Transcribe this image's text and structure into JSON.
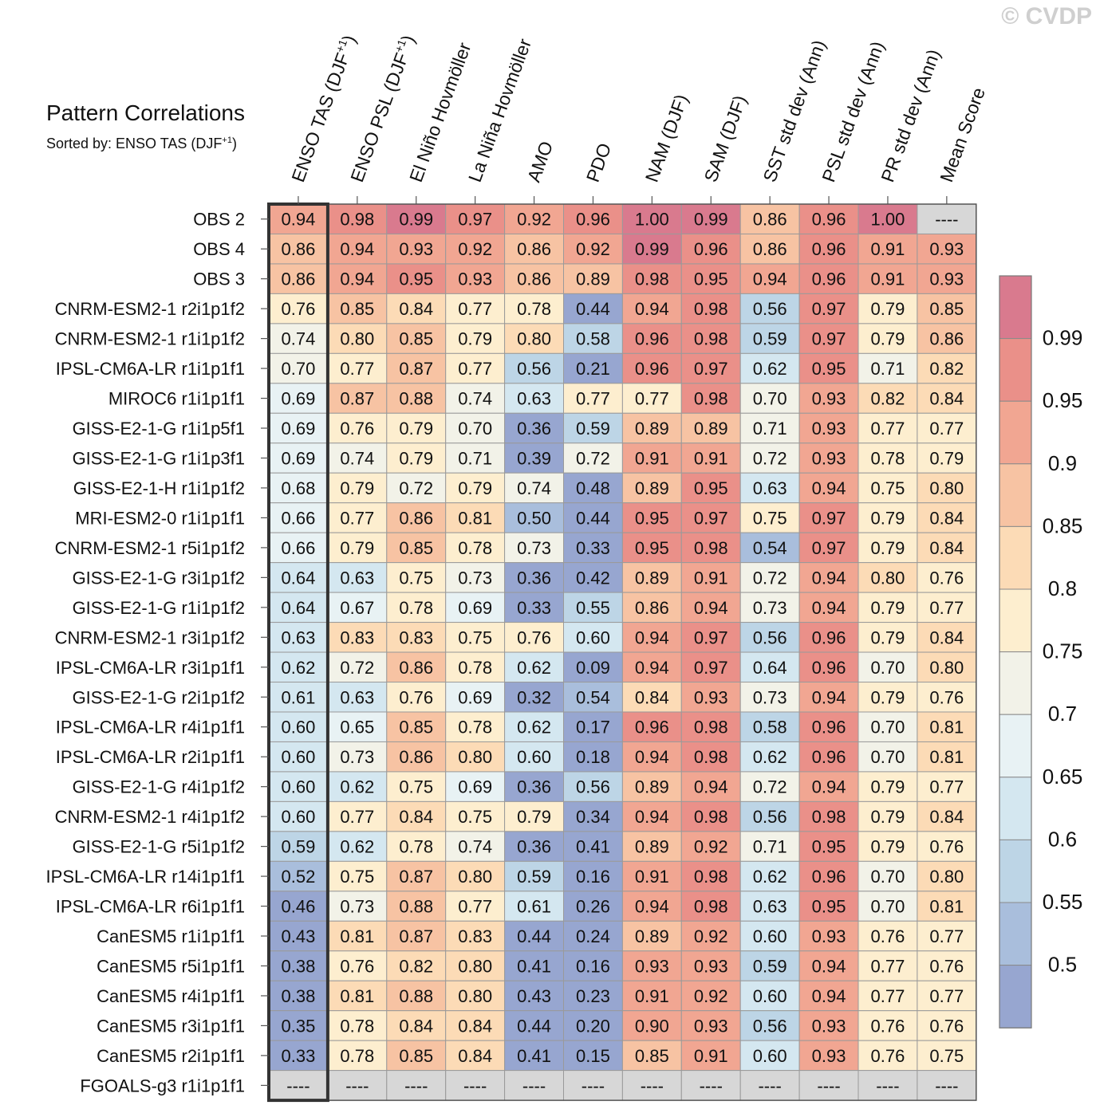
{
  "watermark": "© CVDP",
  "title": "Pattern Correlations",
  "subtitle": {
    "prefix": "Sorted by: ENSO TAS (DJF",
    "sup": "+1",
    "suffix": ")"
  },
  "chart_data": {
    "type": "heatmap",
    "title": "Pattern Correlations",
    "subtitle": "Sorted by: ENSO TAS (DJF+1)",
    "columns": [
      {
        "label": "ENSO TAS (DJF",
        "sup": "+1",
        "suffix": ")"
      },
      {
        "label": "ENSO PSL (DJF",
        "sup": "+1",
        "suffix": ")"
      },
      {
        "label": "El Niño Hovmöller"
      },
      {
        "label": "La Niña Hovmöller"
      },
      {
        "label": "AMO"
      },
      {
        "label": "PDO"
      },
      {
        "label": "NAM (DJF)"
      },
      {
        "label": "SAM (DJF)"
      },
      {
        "label": "SST std dev (Ann)"
      },
      {
        "label": "PSL std dev (Ann)"
      },
      {
        "label": "PR std dev (Ann)"
      },
      {
        "label": "Mean Score"
      }
    ],
    "sorted_column": 0,
    "rows": [
      {
        "name": "OBS 2",
        "values": [
          0.94,
          0.98,
          0.99,
          0.97,
          0.92,
          0.96,
          1.0,
          0.99,
          0.86,
          0.96,
          1.0,
          null
        ]
      },
      {
        "name": "OBS 4",
        "values": [
          0.86,
          0.94,
          0.93,
          0.92,
          0.86,
          0.92,
          0.99,
          0.96,
          0.86,
          0.96,
          0.91,
          0.93
        ]
      },
      {
        "name": "OBS 3",
        "values": [
          0.86,
          0.94,
          0.95,
          0.93,
          0.86,
          0.89,
          0.98,
          0.95,
          0.94,
          0.96,
          0.91,
          0.93
        ]
      },
      {
        "name": "CNRM-ESM2-1 r2i1p1f2",
        "values": [
          0.76,
          0.85,
          0.84,
          0.77,
          0.78,
          0.44,
          0.94,
          0.98,
          0.56,
          0.97,
          0.79,
          0.85
        ]
      },
      {
        "name": "CNRM-ESM2-1 r1i1p1f2",
        "values": [
          0.74,
          0.8,
          0.85,
          0.79,
          0.8,
          0.58,
          0.96,
          0.98,
          0.59,
          0.97,
          0.79,
          0.86
        ]
      },
      {
        "name": "IPSL-CM6A-LR r1i1p1f1",
        "values": [
          0.7,
          0.77,
          0.87,
          0.77,
          0.56,
          0.21,
          0.96,
          0.97,
          0.62,
          0.95,
          0.71,
          0.82
        ]
      },
      {
        "name": "MIROC6 r1i1p1f1",
        "values": [
          0.69,
          0.87,
          0.88,
          0.74,
          0.63,
          0.77,
          0.77,
          0.98,
          0.7,
          0.93,
          0.82,
          0.84
        ]
      },
      {
        "name": "GISS-E2-1-G r1i1p5f1",
        "values": [
          0.69,
          0.76,
          0.79,
          0.7,
          0.36,
          0.59,
          0.89,
          0.89,
          0.71,
          0.93,
          0.77,
          0.77
        ]
      },
      {
        "name": "GISS-E2-1-G r1i1p3f1",
        "values": [
          0.69,
          0.74,
          0.79,
          0.71,
          0.39,
          0.72,
          0.91,
          0.91,
          0.72,
          0.93,
          0.78,
          0.79
        ]
      },
      {
        "name": "GISS-E2-1-H r1i1p1f2",
        "values": [
          0.68,
          0.79,
          0.72,
          0.79,
          0.74,
          0.48,
          0.89,
          0.95,
          0.63,
          0.94,
          0.75,
          0.8
        ]
      },
      {
        "name": "MRI-ESM2-0 r1i1p1f1",
        "values": [
          0.66,
          0.77,
          0.86,
          0.81,
          0.5,
          0.44,
          0.95,
          0.97,
          0.75,
          0.97,
          0.79,
          0.84
        ]
      },
      {
        "name": "CNRM-ESM2-1 r5i1p1f2",
        "values": [
          0.66,
          0.79,
          0.85,
          0.78,
          0.73,
          0.33,
          0.95,
          0.98,
          0.54,
          0.97,
          0.79,
          0.84
        ]
      },
      {
        "name": "GISS-E2-1-G r3i1p1f2",
        "values": [
          0.64,
          0.63,
          0.75,
          0.73,
          0.36,
          0.42,
          0.89,
          0.91,
          0.72,
          0.94,
          0.8,
          0.76
        ]
      },
      {
        "name": "GISS-E2-1-G r1i1p1f2",
        "values": [
          0.64,
          0.67,
          0.78,
          0.69,
          0.33,
          0.55,
          0.86,
          0.94,
          0.73,
          0.94,
          0.79,
          0.77
        ]
      },
      {
        "name": "CNRM-ESM2-1 r3i1p1f2",
        "values": [
          0.63,
          0.83,
          0.83,
          0.75,
          0.76,
          0.6,
          0.94,
          0.97,
          0.56,
          0.96,
          0.79,
          0.84
        ]
      },
      {
        "name": "IPSL-CM6A-LR r3i1p1f1",
        "values": [
          0.62,
          0.72,
          0.86,
          0.78,
          0.62,
          0.09,
          0.94,
          0.97,
          0.64,
          0.96,
          0.7,
          0.8
        ]
      },
      {
        "name": "GISS-E2-1-G r2i1p1f2",
        "values": [
          0.61,
          0.63,
          0.76,
          0.69,
          0.32,
          0.54,
          0.84,
          0.93,
          0.73,
          0.94,
          0.79,
          0.76
        ]
      },
      {
        "name": "IPSL-CM6A-LR r4i1p1f1",
        "values": [
          0.6,
          0.65,
          0.85,
          0.78,
          0.62,
          0.17,
          0.96,
          0.98,
          0.58,
          0.96,
          0.7,
          0.81
        ]
      },
      {
        "name": "IPSL-CM6A-LR r2i1p1f1",
        "values": [
          0.6,
          0.73,
          0.86,
          0.8,
          0.6,
          0.18,
          0.94,
          0.98,
          0.62,
          0.96,
          0.7,
          0.81
        ]
      },
      {
        "name": "GISS-E2-1-G r4i1p1f2",
        "values": [
          0.6,
          0.62,
          0.75,
          0.69,
          0.36,
          0.56,
          0.89,
          0.94,
          0.72,
          0.94,
          0.79,
          0.77
        ]
      },
      {
        "name": "CNRM-ESM2-1 r4i1p1f2",
        "values": [
          0.6,
          0.77,
          0.84,
          0.75,
          0.79,
          0.34,
          0.94,
          0.98,
          0.56,
          0.98,
          0.79,
          0.84
        ]
      },
      {
        "name": "GISS-E2-1-G r5i1p1f2",
        "values": [
          0.59,
          0.62,
          0.78,
          0.74,
          0.36,
          0.41,
          0.89,
          0.92,
          0.71,
          0.95,
          0.79,
          0.76
        ]
      },
      {
        "name": "IPSL-CM6A-LR r14i1p1f1",
        "values": [
          0.52,
          0.75,
          0.87,
          0.8,
          0.59,
          0.16,
          0.91,
          0.98,
          0.62,
          0.96,
          0.7,
          0.8
        ]
      },
      {
        "name": "IPSL-CM6A-LR r6i1p1f1",
        "values": [
          0.46,
          0.73,
          0.88,
          0.77,
          0.61,
          0.26,
          0.94,
          0.98,
          0.63,
          0.95,
          0.7,
          0.81
        ]
      },
      {
        "name": "CanESM5 r1i1p1f1",
        "values": [
          0.43,
          0.81,
          0.87,
          0.83,
          0.44,
          0.24,
          0.89,
          0.92,
          0.6,
          0.93,
          0.76,
          0.77
        ]
      },
      {
        "name": "CanESM5 r5i1p1f1",
        "values": [
          0.38,
          0.76,
          0.82,
          0.8,
          0.41,
          0.16,
          0.93,
          0.93,
          0.59,
          0.94,
          0.77,
          0.76
        ]
      },
      {
        "name": "CanESM5 r4i1p1f1",
        "values": [
          0.38,
          0.81,
          0.88,
          0.8,
          0.43,
          0.23,
          0.91,
          0.92,
          0.6,
          0.94,
          0.77,
          0.77
        ]
      },
      {
        "name": "CanESM5 r3i1p1f1",
        "values": [
          0.35,
          0.78,
          0.84,
          0.84,
          0.44,
          0.2,
          0.9,
          0.93,
          0.56,
          0.93,
          0.76,
          0.76
        ]
      },
      {
        "name": "CanESM5 r2i1p1f1",
        "values": [
          0.33,
          0.78,
          0.85,
          0.84,
          0.41,
          0.15,
          0.85,
          0.91,
          0.6,
          0.93,
          0.76,
          0.75
        ]
      },
      {
        "name": "FGOALS-g3 r1i1p1f1",
        "values": [
          null,
          null,
          null,
          null,
          null,
          null,
          null,
          null,
          null,
          null,
          null,
          null
        ]
      }
    ],
    "missing_label": "----",
    "colorbar": {
      "levels": [
        0.5,
        0.55,
        0.6,
        0.65,
        0.7,
        0.75,
        0.8,
        0.85,
        0.9,
        0.95,
        0.99
      ],
      "tick_labels": [
        "0.5",
        "0.55",
        "0.6",
        "0.65",
        "0.7",
        "0.75",
        "0.8",
        "0.85",
        "0.9",
        "0.95",
        "0.99"
      ],
      "colors": [
        "#97a6d0",
        "#a9bedc",
        "#bdd5e6",
        "#d4e7f0",
        "#e8f2f4",
        "#f2f2e8",
        "#fdeecf",
        "#fcdbb6",
        "#f7c3a3",
        "#f1a692",
        "#ea9089",
        "#d97a8e"
      ],
      "missing_color": "#d7d7d7"
    }
  }
}
